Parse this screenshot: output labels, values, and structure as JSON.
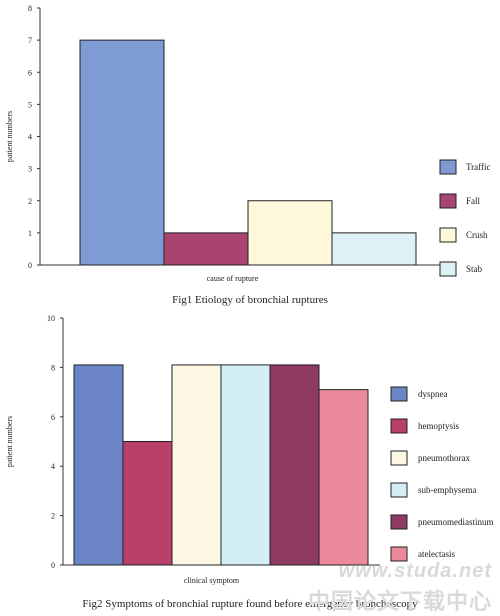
{
  "chart_data": [
    {
      "type": "bar",
      "categories": [
        "Traffic",
        "Fall",
        "Crush",
        "Stab"
      ],
      "values": [
        7,
        1,
        2,
        1
      ],
      "colors": [
        "#7f9bd3",
        "#a8446f",
        "#fcf8d9",
        "#ddf1f6"
      ],
      "xlabel": "cause of rupture",
      "ylabel": "patient numbers",
      "ylim": [
        0,
        8
      ],
      "yticks": [
        0,
        1,
        2,
        3,
        4,
        5,
        6,
        7,
        8
      ],
      "legend": "right",
      "grid": false,
      "caption": "Fig1  Etiology of bronchial ruptures"
    },
    {
      "type": "bar",
      "categories": [
        "dyspnea",
        "hemoptysis",
        "pneumothorax",
        "sub-emphysema",
        "pneumomediastinum",
        "atelectasis"
      ],
      "values": [
        8.1,
        5.0,
        8.1,
        8.1,
        8.1,
        7.1
      ],
      "colors": [
        "#6b85c7",
        "#b8406b",
        "#fcf8e4",
        "#d3eef4",
        "#8e3a63",
        "#ea8a9c"
      ],
      "xlabel": "clinical symptom",
      "ylabel": "patient numbers",
      "ylim": [
        0,
        10
      ],
      "yticks": [
        0,
        2,
        4,
        6,
        8,
        10
      ],
      "legend": "right",
      "grid": false,
      "caption": "Fig2  Symptoms of bronchial rupture found before emergency bronchoscopy"
    }
  ],
  "watermark": {
    "line1": "www.studa.net",
    "line2": "中国论文下载中心"
  }
}
